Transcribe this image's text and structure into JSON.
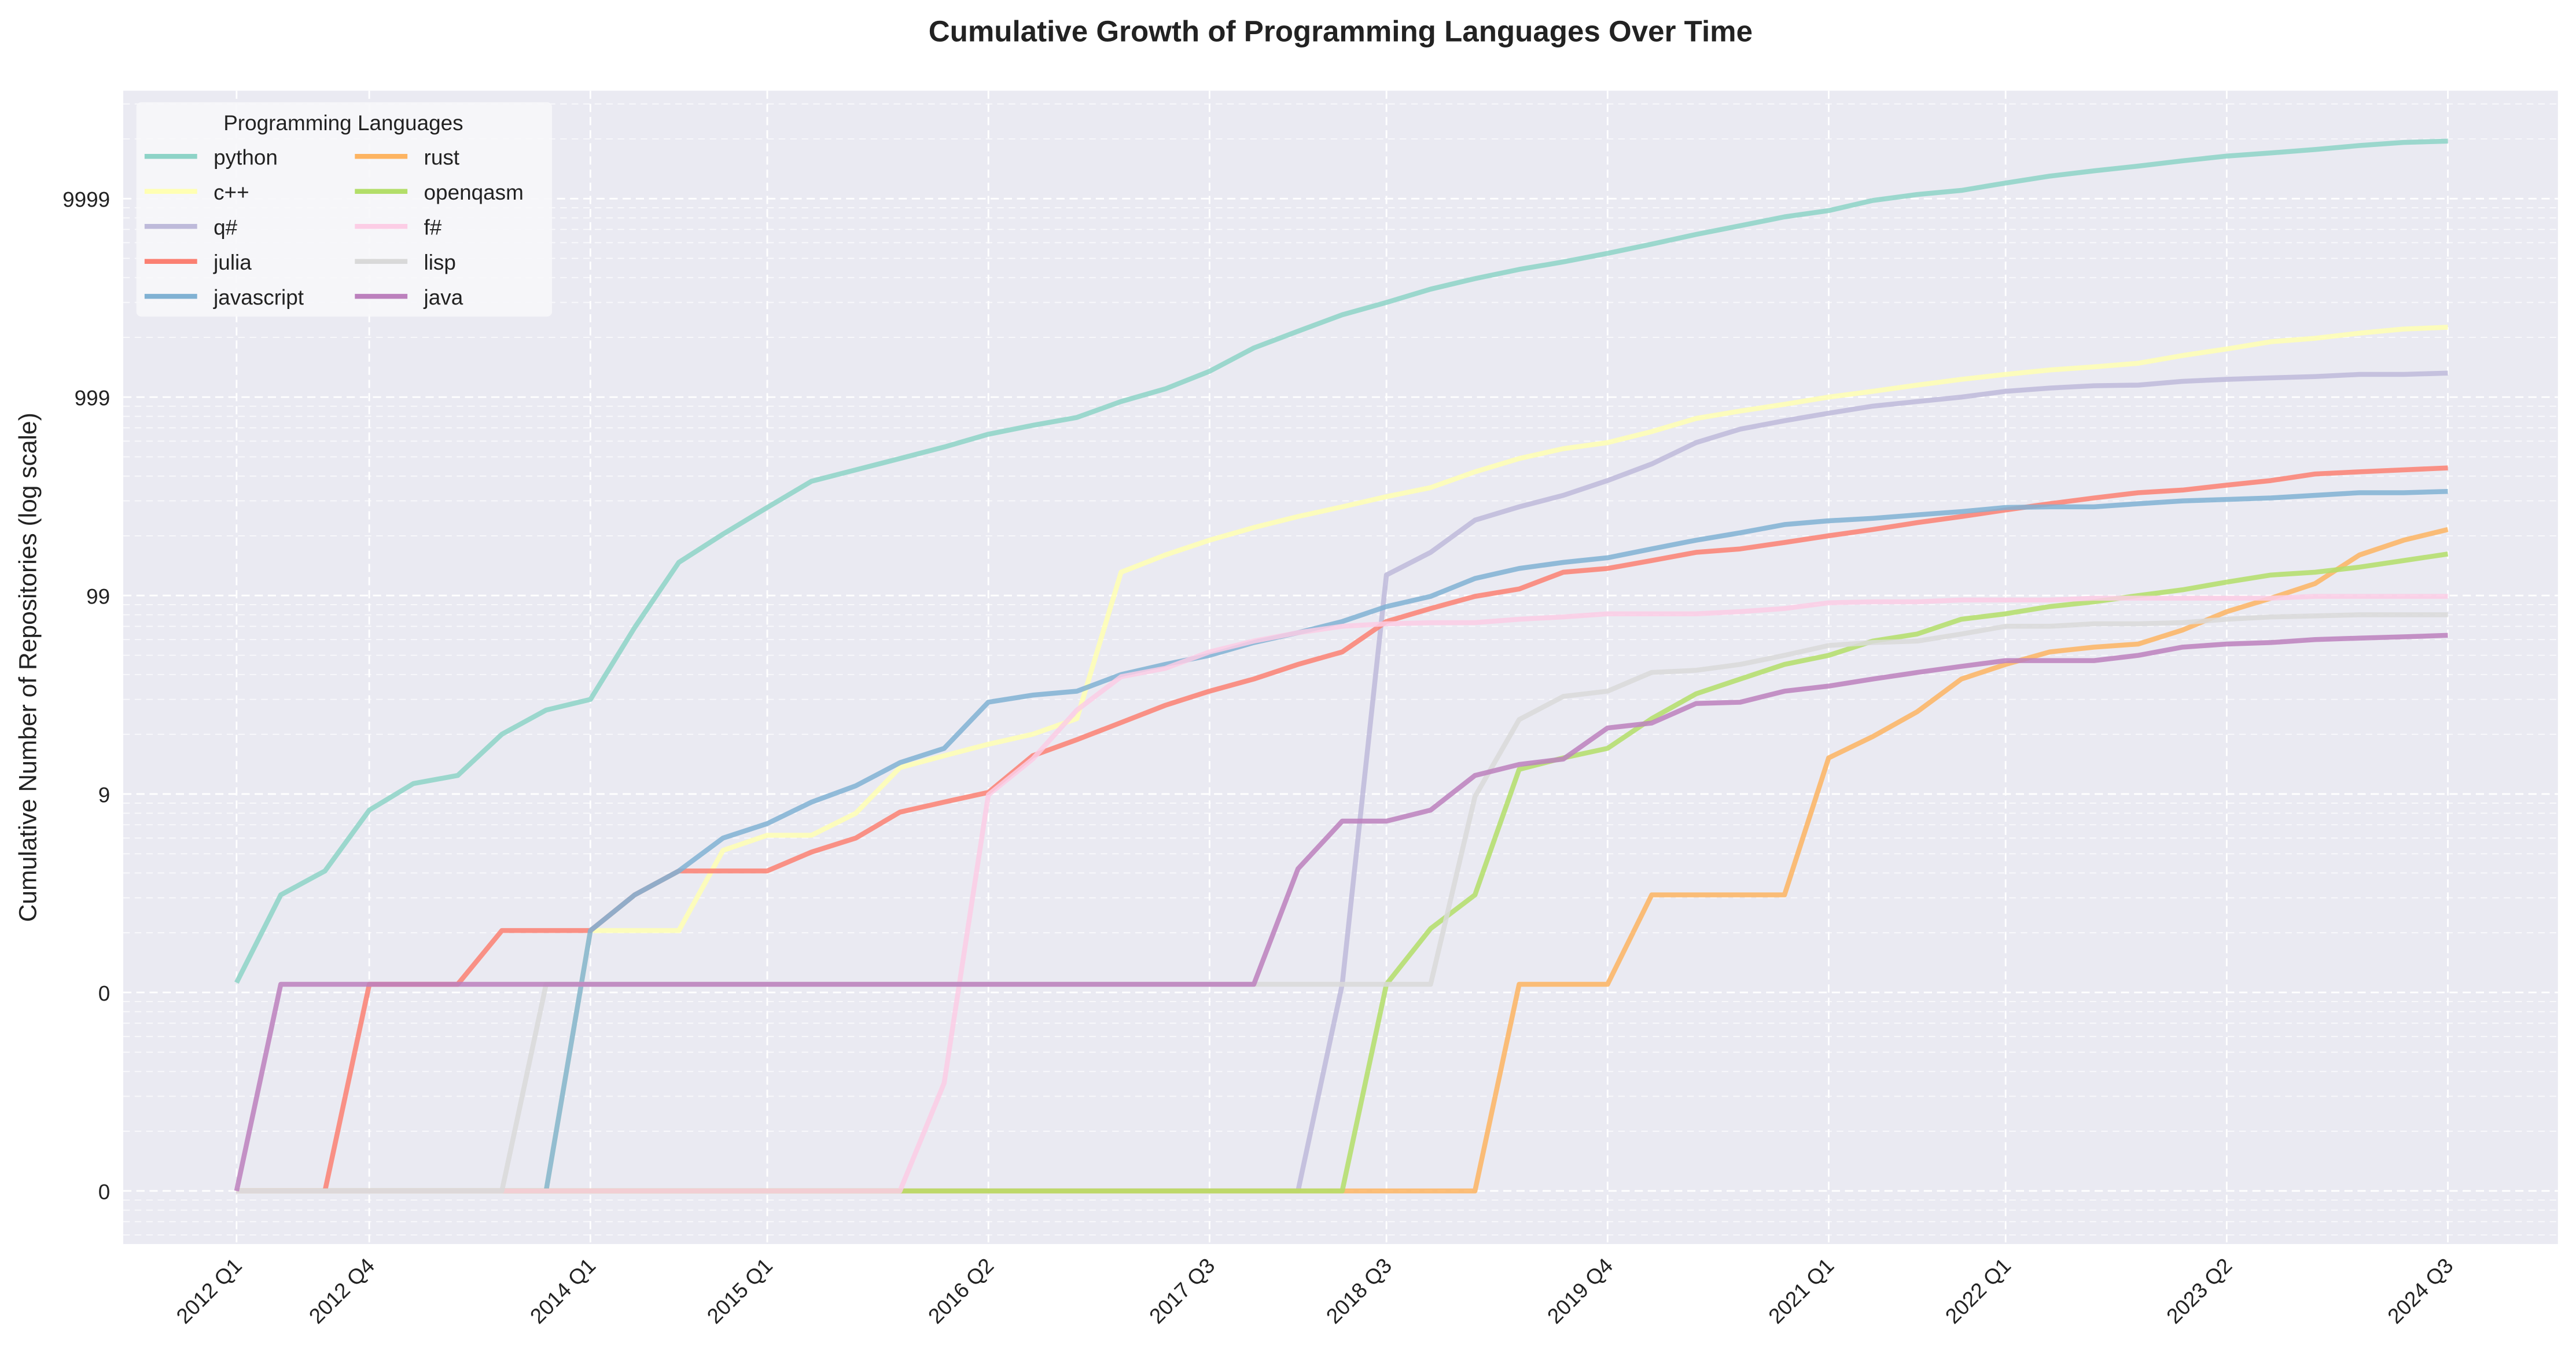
{
  "chart_data": {
    "type": "line",
    "title": "Cumulative Growth of Programming Languages Over Time",
    "y_label": "Cumulative Number of Repositories (log scale)",
    "y_scale": "log",
    "grid": true,
    "legend_title": "Programming Languages",
    "legend_position": "upper left",
    "categories": [
      "2012 Q1",
      null,
      null,
      "2012 Q4",
      null,
      null,
      null,
      null,
      "2014 Q1",
      null,
      null,
      null,
      "2015 Q1",
      null,
      null,
      null,
      null,
      "2016 Q2",
      null,
      null,
      null,
      null,
      "2017 Q3",
      null,
      null,
      null,
      "2018 Q3",
      null,
      null,
      null,
      null,
      "2019 Q4",
      null,
      null,
      null,
      null,
      "2021 Q1",
      null,
      null,
      null,
      "2022 Q1",
      null,
      null,
      null,
      null,
      "2023 Q2",
      null,
      null,
      null,
      null,
      "2024 Q3"
    ],
    "ylim": [
      0.054,
      35000
    ],
    "yticks": [
      {
        "value": 0.1,
        "label": "0"
      },
      {
        "value": 1,
        "label": "0"
      },
      {
        "value": 10,
        "label": "9"
      },
      {
        "value": 100,
        "label": "99"
      },
      {
        "value": 1000,
        "label": "999"
      },
      {
        "value": 10000,
        "label": "9999"
      }
    ],
    "series": [
      {
        "name": "python",
        "color": "#8dd3c7",
        "values": [
          1.12,
          3.1,
          4.1,
          8.3,
          11.3,
          12.4,
          20,
          26.5,
          30,
          69,
          147,
          204,
          278,
          377,
          430,
          490,
          560,
          650,
          720,
          790,
          950,
          1100,
          1350,
          1770,
          2150,
          2600,
          3000,
          3500,
          3950,
          4400,
          4800,
          5300,
          5900,
          6600,
          7300,
          8100,
          8700,
          9800,
          10500,
          11000,
          12000,
          13000,
          13800,
          14600,
          15500,
          16400,
          17000,
          17700,
          18500,
          19200,
          19500
        ]
      },
      {
        "name": "c++",
        "color": "#ffffb3",
        "values": [
          0.1,
          0.1,
          0.1,
          0.1,
          0.1,
          0.1,
          0.1,
          0.1,
          2.05,
          2.05,
          2.05,
          5.2,
          6.2,
          6.2,
          8,
          13.6,
          15.6,
          17.8,
          20,
          24,
          131,
          160,
          190,
          220,
          250,
          280,
          315,
          350,
          420,
          490,
          550,
          590,
          670,
          780,
          850,
          920,
          1000,
          1070,
          1150,
          1230,
          1300,
          1370,
          1420,
          1480,
          1620,
          1750,
          1900,
          1980,
          2100,
          2200,
          2250
        ]
      },
      {
        "name": "q#",
        "color": "#bebada",
        "values": [
          0.1,
          0.1,
          0.1,
          0.1,
          0.1,
          0.1,
          0.1,
          0.1,
          0.1,
          0.1,
          0.1,
          0.1,
          0.1,
          0.1,
          0.1,
          0.1,
          0.1,
          0.1,
          0.1,
          0.1,
          0.1,
          0.1,
          0.1,
          0.1,
          0.1,
          1.1,
          127,
          165,
          240,
          280,
          320,
          380,
          460,
          590,
          690,
          760,
          830,
          900,
          950,
          1000,
          1070,
          1110,
          1140,
          1150,
          1200,
          1230,
          1250,
          1270,
          1300,
          1300,
          1320
        ]
      },
      {
        "name": "julia",
        "color": "#fb8072",
        "values": [
          0.1,
          0.1,
          0.1,
          1.1,
          1.1,
          1.1,
          2.05,
          2.05,
          2.05,
          3.1,
          4.1,
          4.1,
          4.1,
          5.1,
          6,
          8.1,
          9.1,
          10.2,
          15.6,
          18.8,
          22.9,
          28,
          33,
          38,
          45,
          52,
          74,
          86,
          99,
          108,
          131,
          137,
          150,
          165,
          172,
          185,
          200,
          215,
          233,
          250,
          270,
          290,
          310,
          330,
          340,
          360,
          380,
          410,
          420,
          430,
          440
        ]
      },
      {
        "name": "javascript",
        "color": "#80b1d3",
        "values": [
          0.1,
          0.1,
          0.1,
          0.1,
          0.1,
          0.1,
          0.1,
          0.1,
          2.05,
          3.1,
          4.1,
          6,
          7.1,
          9.1,
          11,
          14.4,
          17,
          29,
          31.5,
          33,
          40,
          45,
          50,
          58,
          65,
          74,
          88,
          99,
          122,
          137,
          147,
          155,
          172,
          190,
          207,
          228,
          238,
          245,
          255,
          265,
          278,
          280,
          280,
          290,
          300,
          305,
          310,
          320,
          330,
          330,
          335
        ]
      },
      {
        "name": "rust",
        "color": "#fdb462",
        "values": [
          0.1,
          0.1,
          0.1,
          0.1,
          0.1,
          0.1,
          0.1,
          0.1,
          0.1,
          0.1,
          0.1,
          0.1,
          0.1,
          0.1,
          0.1,
          0.1,
          0.1,
          0.1,
          0.1,
          0.1,
          0.1,
          0.1,
          0.1,
          0.1,
          0.1,
          0.1,
          0.1,
          0.1,
          0.1,
          1.1,
          1.1,
          1.1,
          3.1,
          3.1,
          3.1,
          3.1,
          15.2,
          19.5,
          26,
          38,
          45,
          52,
          55,
          57,
          67,
          83,
          97,
          115,
          160,
          190,
          215
        ]
      },
      {
        "name": "openqasm",
        "color": "#b3de69",
        "values": [
          0.1,
          0.1,
          0.1,
          0.1,
          0.1,
          0.1,
          0.1,
          0.1,
          0.1,
          0.1,
          0.1,
          0.1,
          0.1,
          0.1,
          0.1,
          0.1,
          0.1,
          0.1,
          0.1,
          0.1,
          0.1,
          0.1,
          0.1,
          0.1,
          0.1,
          0.1,
          1.1,
          2.1,
          3.1,
          13.3,
          15.2,
          17,
          24,
          32,
          38,
          45,
          50,
          59,
          64,
          76,
          81,
          88,
          93,
          100,
          107,
          117,
          127,
          131,
          139,
          150,
          162
        ]
      },
      {
        "name": "f#",
        "color": "#fccde5",
        "values": [
          0.1,
          0.1,
          0.1,
          0.1,
          0.1,
          0.1,
          0.1,
          0.1,
          0.1,
          0.1,
          0.1,
          0.1,
          0.1,
          0.1,
          0.1,
          0.1,
          0.35,
          9.9,
          15,
          26.5,
          39,
          43,
          52,
          59,
          65,
          70,
          72,
          73,
          73,
          76,
          78,
          81,
          81,
          81,
          83,
          86,
          92,
          93,
          93,
          95,
          95,
          95,
          97,
          97,
          97,
          97,
          97,
          99,
          99,
          99,
          99
        ]
      },
      {
        "name": "lisp",
        "color": "#d9d9d9",
        "values": [
          0.1,
          0.1,
          0.1,
          0.1,
          0.1,
          0.1,
          0.1,
          1.1,
          1.1,
          1.1,
          1.1,
          1.1,
          1.1,
          1.1,
          1.1,
          1.1,
          1.1,
          1.1,
          1.1,
          1.1,
          1.1,
          1.1,
          1.1,
          1.1,
          1.1,
          1.1,
          1.1,
          1.1,
          9.7,
          23.7,
          31,
          33,
          41,
          42,
          45,
          50,
          56,
          58,
          59,
          64,
          70,
          70,
          72,
          72,
          73,
          76,
          78,
          79,
          80,
          80,
          80
        ]
      },
      {
        "name": "java",
        "color": "#bc80bd",
        "values": [
          0.1,
          1.1,
          1.1,
          1.1,
          1.1,
          1.1,
          1.1,
          1.1,
          1.1,
          1.1,
          1.1,
          1.1,
          1.1,
          1.1,
          1.1,
          1.1,
          1.1,
          1.1,
          1.1,
          1.1,
          1.1,
          1.1,
          1.1,
          1.1,
          4.2,
          7.3,
          7.3,
          8.3,
          12.4,
          14.1,
          15,
          21.5,
          22.8,
          28.6,
          29,
          33,
          35,
          38,
          41,
          44,
          47,
          47,
          47,
          50,
          55,
          57,
          58,
          60,
          61,
          62,
          63
        ]
      }
    ]
  }
}
